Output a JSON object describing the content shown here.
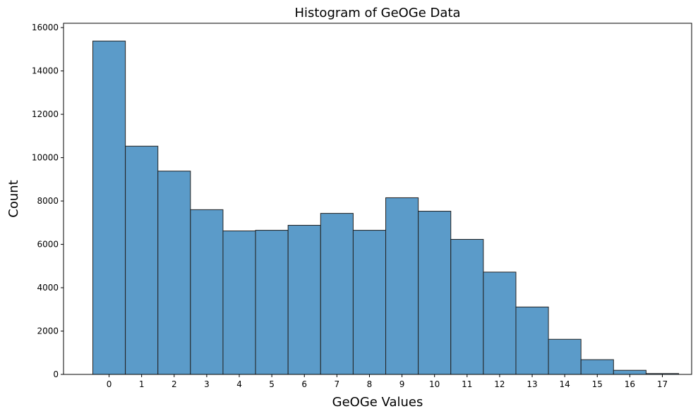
{
  "chart_data": {
    "type": "bar",
    "title": "Histogram of GeOGe Data",
    "xlabel": "GeOGe Values",
    "ylabel": "Count",
    "categories": [
      "0",
      "1",
      "2",
      "3",
      "4",
      "5",
      "6",
      "7",
      "8",
      "9",
      "10",
      "11",
      "12",
      "13",
      "14",
      "15",
      "16",
      "17"
    ],
    "values": [
      15380,
      10530,
      9380,
      7600,
      6620,
      6650,
      6880,
      7430,
      6650,
      8150,
      7530,
      6230,
      4720,
      3110,
      1620,
      680,
      190,
      40
    ],
    "ylim": [
      0,
      16200
    ],
    "yticks": [
      0,
      2000,
      4000,
      6000,
      8000,
      10000,
      12000,
      14000,
      16000
    ],
    "ytick_labels": [
      "0",
      "2000",
      "4000",
      "6000",
      "8000",
      "10000",
      "12000",
      "14000",
      "16000"
    ],
    "grid": false,
    "colors": {
      "bar_fill": "#5b9bc9",
      "bar_edge": "#222222"
    }
  }
}
